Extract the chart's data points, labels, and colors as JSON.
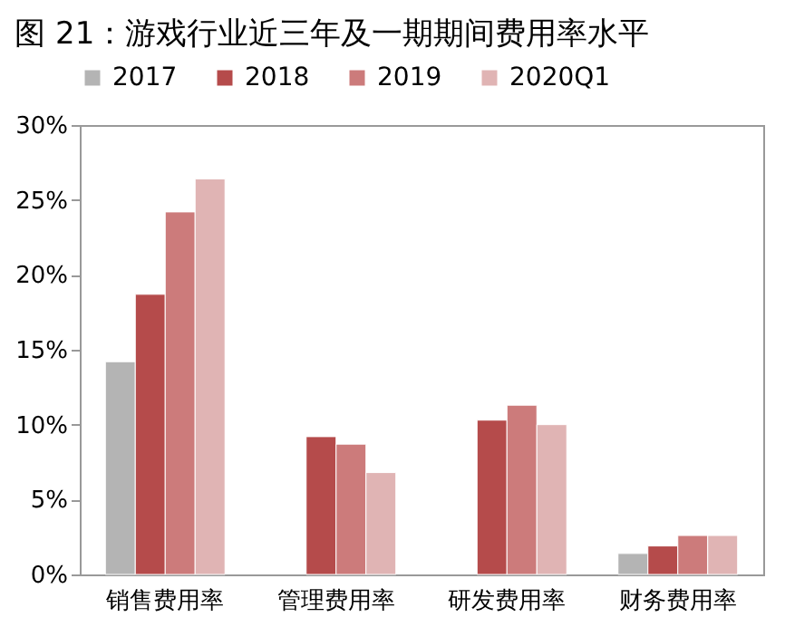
{
  "chart_data": {
    "type": "bar",
    "title": "图 21：游戏行业近三年及一期期间费用率水平",
    "categories": [
      "销售费用率",
      "管理费用率",
      "研发费用率",
      "财务费用率"
    ],
    "series": [
      {
        "name": "2017",
        "color": "#b4b4b4",
        "values": [
          14.2,
          null,
          null,
          1.4
        ]
      },
      {
        "name": "2018",
        "color": "#b54b4b",
        "values": [
          18.7,
          9.2,
          10.3,
          1.9
        ]
      },
      {
        "name": "2019",
        "color": "#cc7b7b",
        "values": [
          24.2,
          8.7,
          11.3,
          2.6
        ]
      },
      {
        "name": "2020Q1",
        "color": "#e0b4b4",
        "values": [
          26.4,
          6.8,
          10.0,
          2.6
        ]
      }
    ],
    "ylim": [
      0,
      30
    ],
    "yticks": [
      {
        "value": 0,
        "label": "0%"
      },
      {
        "value": 5,
        "label": "5%"
      },
      {
        "value": 10,
        "label": "10%"
      },
      {
        "value": 15,
        "label": "15%"
      },
      {
        "value": 20,
        "label": "20%"
      },
      {
        "value": 25,
        "label": "25%"
      },
      {
        "value": 30,
        "label": "30%"
      }
    ],
    "grid": false,
    "legend": "top"
  }
}
